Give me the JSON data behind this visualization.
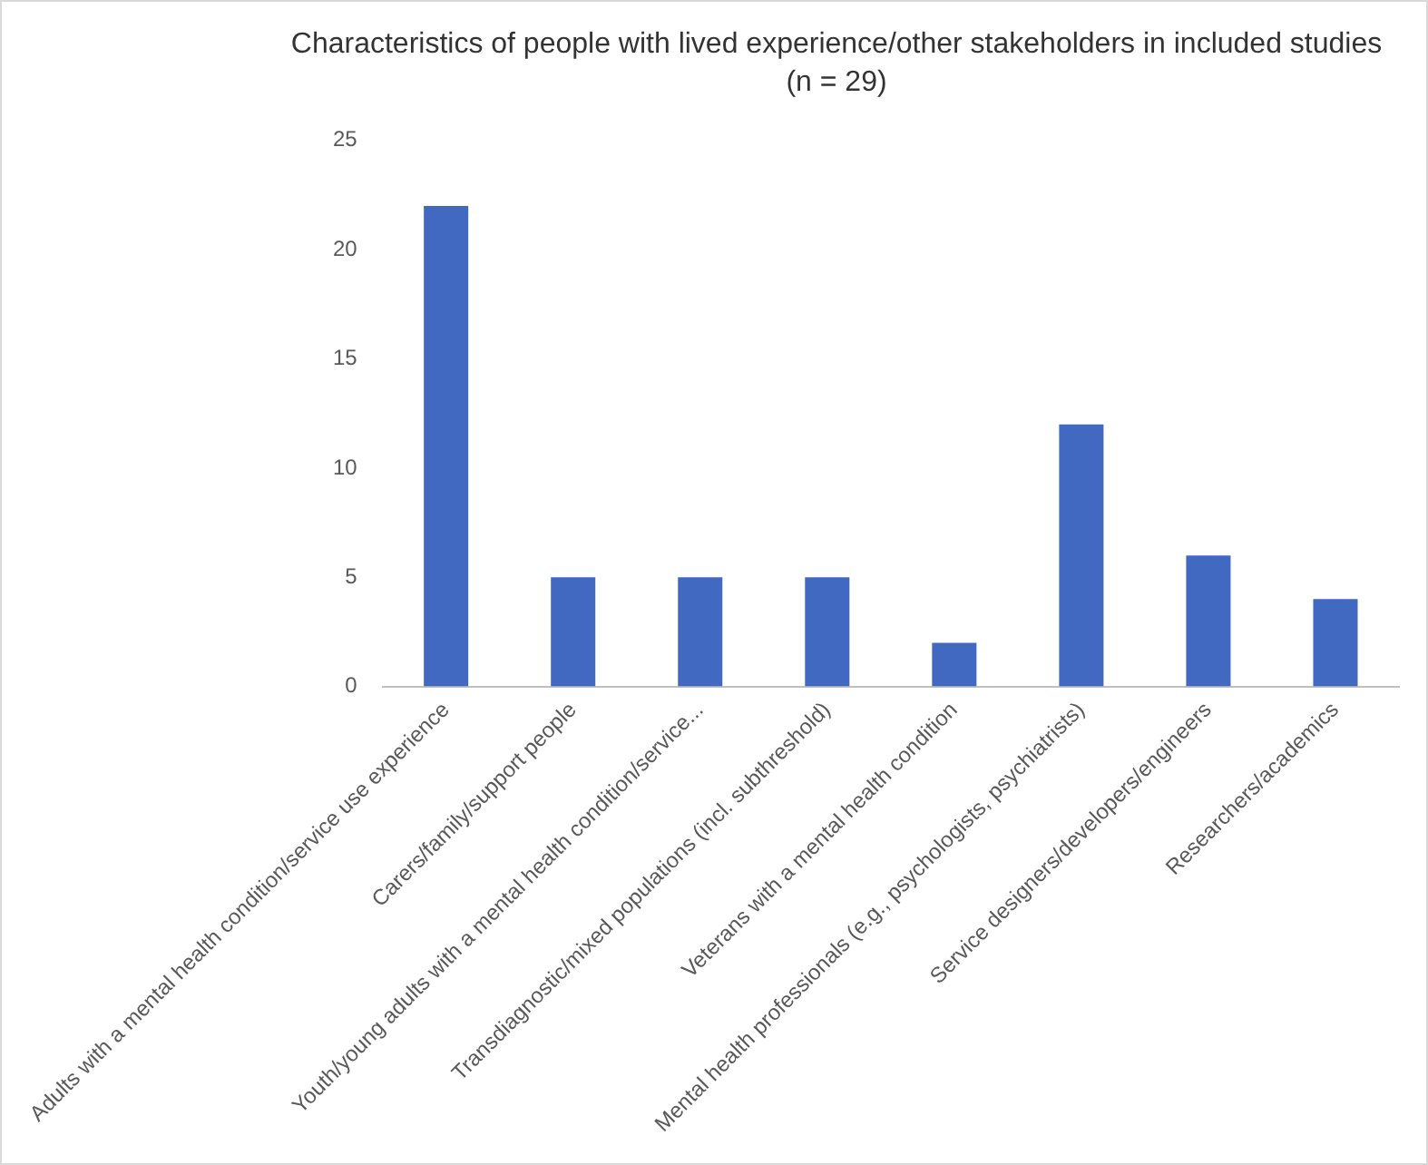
{
  "chart_data": {
    "type": "bar",
    "title": "Characteristics of people with lived experience/other stakeholders in included studies",
    "subtitle": "(n = 29)",
    "categories": [
      "Adults with a mental health condition/service use experience",
      "Carers/family/support people",
      "Youth/young adults with a mental health condition/service...",
      "Transdiagnostic/mixed populations (incl. subthreshold)",
      "Veterans with a mental health condition",
      "Mental health professionals (e.g., psychologists, psychiatrists)",
      "Service designers/developers/engineers",
      "Researchers/academics"
    ],
    "values": [
      22,
      5,
      5,
      5,
      2,
      12,
      6,
      4
    ],
    "color": "#4169c1",
    "ylim": [
      0,
      25
    ],
    "yticks": [
      0,
      5,
      10,
      15,
      20,
      25
    ],
    "grid": false,
    "legend": false
  }
}
